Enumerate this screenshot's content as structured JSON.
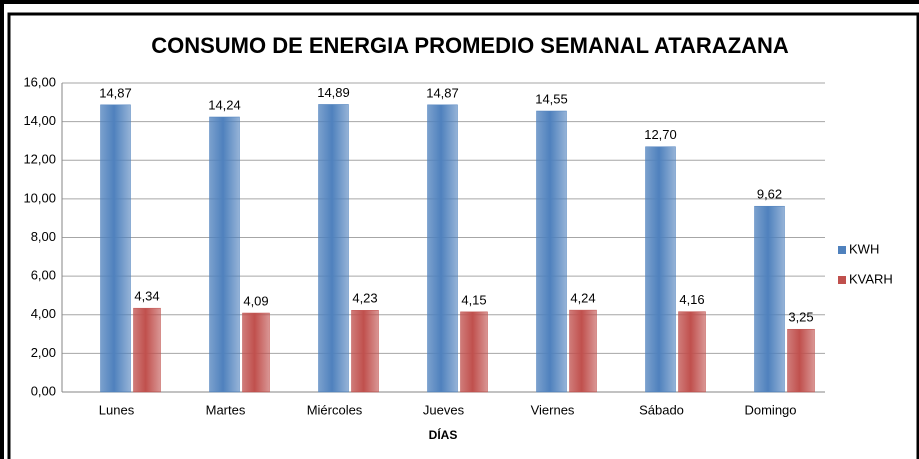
{
  "chart_data": {
    "type": "bar",
    "title": "CONSUMO DE ENERGIA PROMEDIO SEMANAL ATARAZANA",
    "x_label": "DÍAS",
    "categories": [
      "Lunes",
      "Martes",
      "Miércoles",
      "Jueves",
      "Viernes",
      "Sábado",
      "Domingo"
    ],
    "series": [
      {
        "name": "KWH",
        "color": "#4f81bd",
        "values": [
          14.87,
          14.24,
          14.89,
          14.87,
          14.55,
          12.7,
          9.62
        ],
        "value_labels": [
          "14,87",
          "14,24",
          "14,89",
          "14,87",
          "14,55",
          "12,70",
          "9,62"
        ]
      },
      {
        "name": "KVARH",
        "color": "#c0504d",
        "values": [
          4.34,
          4.09,
          4.23,
          4.15,
          4.24,
          4.16,
          3.25
        ],
        "value_labels": [
          "4,34",
          "4,09",
          "4,23",
          "4,15",
          "4,24",
          "4,16",
          "3,25"
        ]
      }
    ],
    "ylim": [
      0,
      16
    ],
    "yticks": [
      {
        "value": 0,
        "label": "0,00"
      },
      {
        "value": 2,
        "label": "2,00"
      },
      {
        "value": 4,
        "label": "4,00"
      },
      {
        "value": 6,
        "label": "6,00"
      },
      {
        "value": 8,
        "label": "8,00"
      },
      {
        "value": 10,
        "label": "10,00"
      },
      {
        "value": 12,
        "label": "12,00"
      },
      {
        "value": 14,
        "label": "14,00"
      },
      {
        "value": 16,
        "label": "16,00"
      }
    ],
    "grid": true,
    "legend": "right"
  }
}
